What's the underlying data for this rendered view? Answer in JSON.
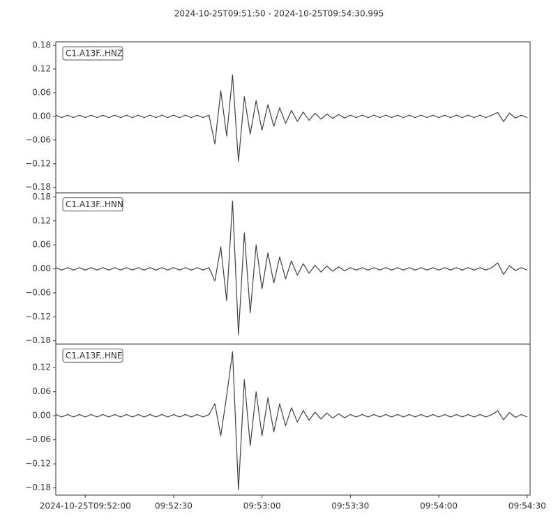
{
  "chart_data": {
    "type": "line",
    "title": "2024-10-25T09:51:50  -  2024-10-25T09:54:30.995",
    "x": [
      "09:51:50",
      "09:51:52",
      "09:51:54",
      "09:51:56",
      "09:51:58",
      "09:52:00",
      "09:52:02",
      "09:52:04",
      "09:52:06",
      "09:52:08",
      "09:52:10",
      "09:52:12",
      "09:52:14",
      "09:52:16",
      "09:52:18",
      "09:52:20",
      "09:52:22",
      "09:52:24",
      "09:52:26",
      "09:52:28",
      "09:52:30",
      "09:52:32",
      "09:52:34",
      "09:52:36",
      "09:52:38",
      "09:52:40",
      "09:52:42",
      "09:52:44",
      "09:52:46",
      "09:52:48",
      "09:52:50",
      "09:52:52",
      "09:52:54",
      "09:52:56",
      "09:52:58",
      "09:53:00",
      "09:53:02",
      "09:53:04",
      "09:53:06",
      "09:53:08",
      "09:53:10",
      "09:53:12",
      "09:53:14",
      "09:53:16",
      "09:53:18",
      "09:53:20",
      "09:53:22",
      "09:53:24",
      "09:53:26",
      "09:53:28",
      "09:53:30",
      "09:53:32",
      "09:53:34",
      "09:53:36",
      "09:53:38",
      "09:53:40",
      "09:53:42",
      "09:53:44",
      "09:53:46",
      "09:53:48",
      "09:53:50",
      "09:53:52",
      "09:53:54",
      "09:53:56",
      "09:53:58",
      "09:54:00",
      "09:54:02",
      "09:54:04",
      "09:54:06",
      "09:54:08",
      "09:54:10",
      "09:54:12",
      "09:54:14",
      "09:54:16",
      "09:54:18",
      "09:54:20",
      "09:54:22",
      "09:54:24",
      "09:54:26",
      "09:54:28",
      "09:54:30"
    ],
    "xlim": [
      "09:51:50",
      "09:54:31"
    ],
    "xticks": [
      {
        "value": "09:52:00",
        "label": "2024-10-25T09:52:00"
      },
      "09:52:30",
      "09:53:00",
      "09:53:30",
      "09:54:00",
      "09:54:30"
    ],
    "series": [
      {
        "name": "C1.A13F..HNZ",
        "color": "#3f3f3f",
        "ylim": [
          -0.194,
          0.189
        ],
        "yticks": [
          0.18,
          0.12,
          0.06,
          {
            "value": 0,
            "label": "0.00"
          },
          {
            "value": -0.06,
            "label": "−0.06"
          },
          {
            "value": -0.12,
            "label": "−0.12"
          },
          {
            "value": -0.18,
            "label": "−0.18"
          }
        ],
        "values": [
          0.003,
          -0.003,
          0.003,
          -0.003,
          0.003,
          -0.003,
          0.003,
          -0.003,
          0.003,
          -0.003,
          0.003,
          -0.003,
          0.003,
          -0.003,
          0.003,
          -0.003,
          0.003,
          -0.003,
          0.003,
          -0.003,
          0.003,
          -0.003,
          0.003,
          -0.003,
          0.003,
          -0.003,
          0.003,
          -0.07,
          0.065,
          -0.05,
          0.105,
          -0.115,
          0.05,
          -0.045,
          0.04,
          -0.035,
          0.03,
          -0.025,
          0.022,
          -0.018,
          0.015,
          -0.013,
          0.011,
          -0.01,
          0.008,
          -0.007,
          0.006,
          -0.005,
          0.005,
          -0.004,
          0.003,
          -0.003,
          0.003,
          -0.003,
          0.003,
          -0.003,
          0.003,
          -0.003,
          0.003,
          -0.003,
          0.003,
          -0.003,
          0.003,
          -0.003,
          0.003,
          -0.003,
          0.003,
          -0.003,
          0.003,
          -0.003,
          0.003,
          -0.003,
          0.003,
          -0.003,
          0.003,
          0.01,
          -0.013,
          0.008,
          -0.004,
          0.003,
          -0.003
        ]
      },
      {
        "name": "C1.A13F..HNN",
        "color": "#3f3f3f",
        "ylim": [
          -0.188,
          0.19
        ],
        "yticks": [
          0.18,
          0.12,
          0.06,
          {
            "value": 0,
            "label": "0.00"
          },
          {
            "value": -0.06,
            "label": "−0.06"
          },
          {
            "value": -0.12,
            "label": "−0.12"
          },
          {
            "value": -0.18,
            "label": "−0.18"
          }
        ],
        "values": [
          0.003,
          -0.003,
          0.003,
          -0.003,
          0.003,
          -0.003,
          0.003,
          -0.003,
          0.003,
          -0.003,
          0.003,
          -0.003,
          0.003,
          -0.003,
          0.003,
          -0.003,
          0.003,
          -0.003,
          0.003,
          -0.003,
          0.003,
          -0.003,
          0.003,
          -0.003,
          0.003,
          -0.003,
          0.003,
          -0.03,
          0.055,
          -0.08,
          0.17,
          -0.165,
          0.09,
          -0.11,
          0.06,
          -0.05,
          0.04,
          -0.035,
          0.03,
          -0.025,
          0.02,
          -0.016,
          0.013,
          -0.011,
          0.009,
          -0.008,
          0.007,
          -0.006,
          0.005,
          -0.005,
          0.003,
          -0.003,
          0.003,
          -0.003,
          0.003,
          -0.003,
          0.003,
          -0.003,
          0.003,
          -0.003,
          0.003,
          -0.003,
          0.003,
          -0.003,
          0.003,
          -0.003,
          0.003,
          -0.003,
          0.003,
          -0.003,
          0.003,
          -0.003,
          0.003,
          -0.003,
          0.003,
          0.015,
          -0.014,
          0.008,
          -0.004,
          0.003,
          -0.003
        ]
      },
      {
        "name": "C1.A13F..HNE",
        "color": "#3f3f3f",
        "ylim": [
          -0.198,
          0.179
        ],
        "yticks": [
          0.12,
          0.06,
          {
            "value": 0,
            "label": "0.00"
          },
          {
            "value": -0.06,
            "label": "−0.06"
          },
          {
            "value": -0.12,
            "label": "−0.12"
          },
          {
            "value": -0.18,
            "label": "−0.18"
          }
        ],
        "values": [
          0.003,
          -0.003,
          0.003,
          -0.003,
          0.003,
          -0.003,
          0.003,
          -0.003,
          0.003,
          -0.003,
          0.003,
          -0.003,
          0.003,
          -0.003,
          0.003,
          -0.003,
          0.003,
          -0.003,
          0.003,
          -0.003,
          0.003,
          -0.003,
          0.003,
          -0.003,
          0.003,
          -0.003,
          0.003,
          0.03,
          -0.05,
          0.05,
          0.16,
          -0.185,
          0.09,
          -0.075,
          0.06,
          -0.05,
          0.045,
          -0.04,
          0.03,
          -0.025,
          0.02,
          -0.016,
          0.013,
          -0.011,
          0.009,
          -0.008,
          0.007,
          -0.006,
          0.005,
          -0.005,
          0.003,
          -0.003,
          0.003,
          -0.003,
          0.003,
          -0.003,
          0.003,
          -0.003,
          0.003,
          -0.003,
          0.003,
          -0.003,
          0.003,
          -0.003,
          0.003,
          -0.003,
          0.003,
          -0.003,
          0.003,
          -0.003,
          0.003,
          -0.003,
          0.003,
          -0.003,
          0.003,
          0.012,
          -0.01,
          0.008,
          -0.004,
          0.003,
          -0.003
        ]
      }
    ]
  }
}
